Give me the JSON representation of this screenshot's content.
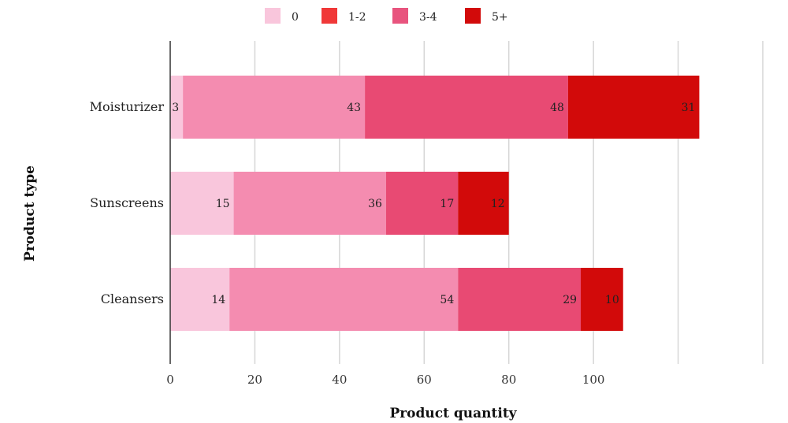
{
  "chart_data": {
    "type": "bar",
    "orientation": "horizontal",
    "stacked": true,
    "categories": [
      "Moisturizer",
      "Sunscreens",
      "Cleansers"
    ],
    "series": [
      {
        "name": "0",
        "color": "#f9c6dc",
        "values": [
          3,
          15,
          14
        ]
      },
      {
        "name": "1-2",
        "color": "#f48cb0",
        "values": [
          43,
          36,
          54
        ]
      },
      {
        "name": "3-4",
        "color": "#e84a73",
        "values": [
          48,
          17,
          29
        ]
      },
      {
        "name": "5+",
        "color": "#d20a0a",
        "values": [
          31,
          12,
          10
        ]
      }
    ],
    "legend_colors": [
      "#f9c6dc",
      "#f03838",
      "#e8547e",
      "#d20a0a"
    ],
    "xlabel": "Product quantity",
    "ylabel": "Product type",
    "xticks": [
      "0",
      "20",
      "40",
      "60",
      "80",
      "100"
    ],
    "xlim": [
      0,
      140
    ],
    "grid": true,
    "legend_position": "top-center"
  }
}
